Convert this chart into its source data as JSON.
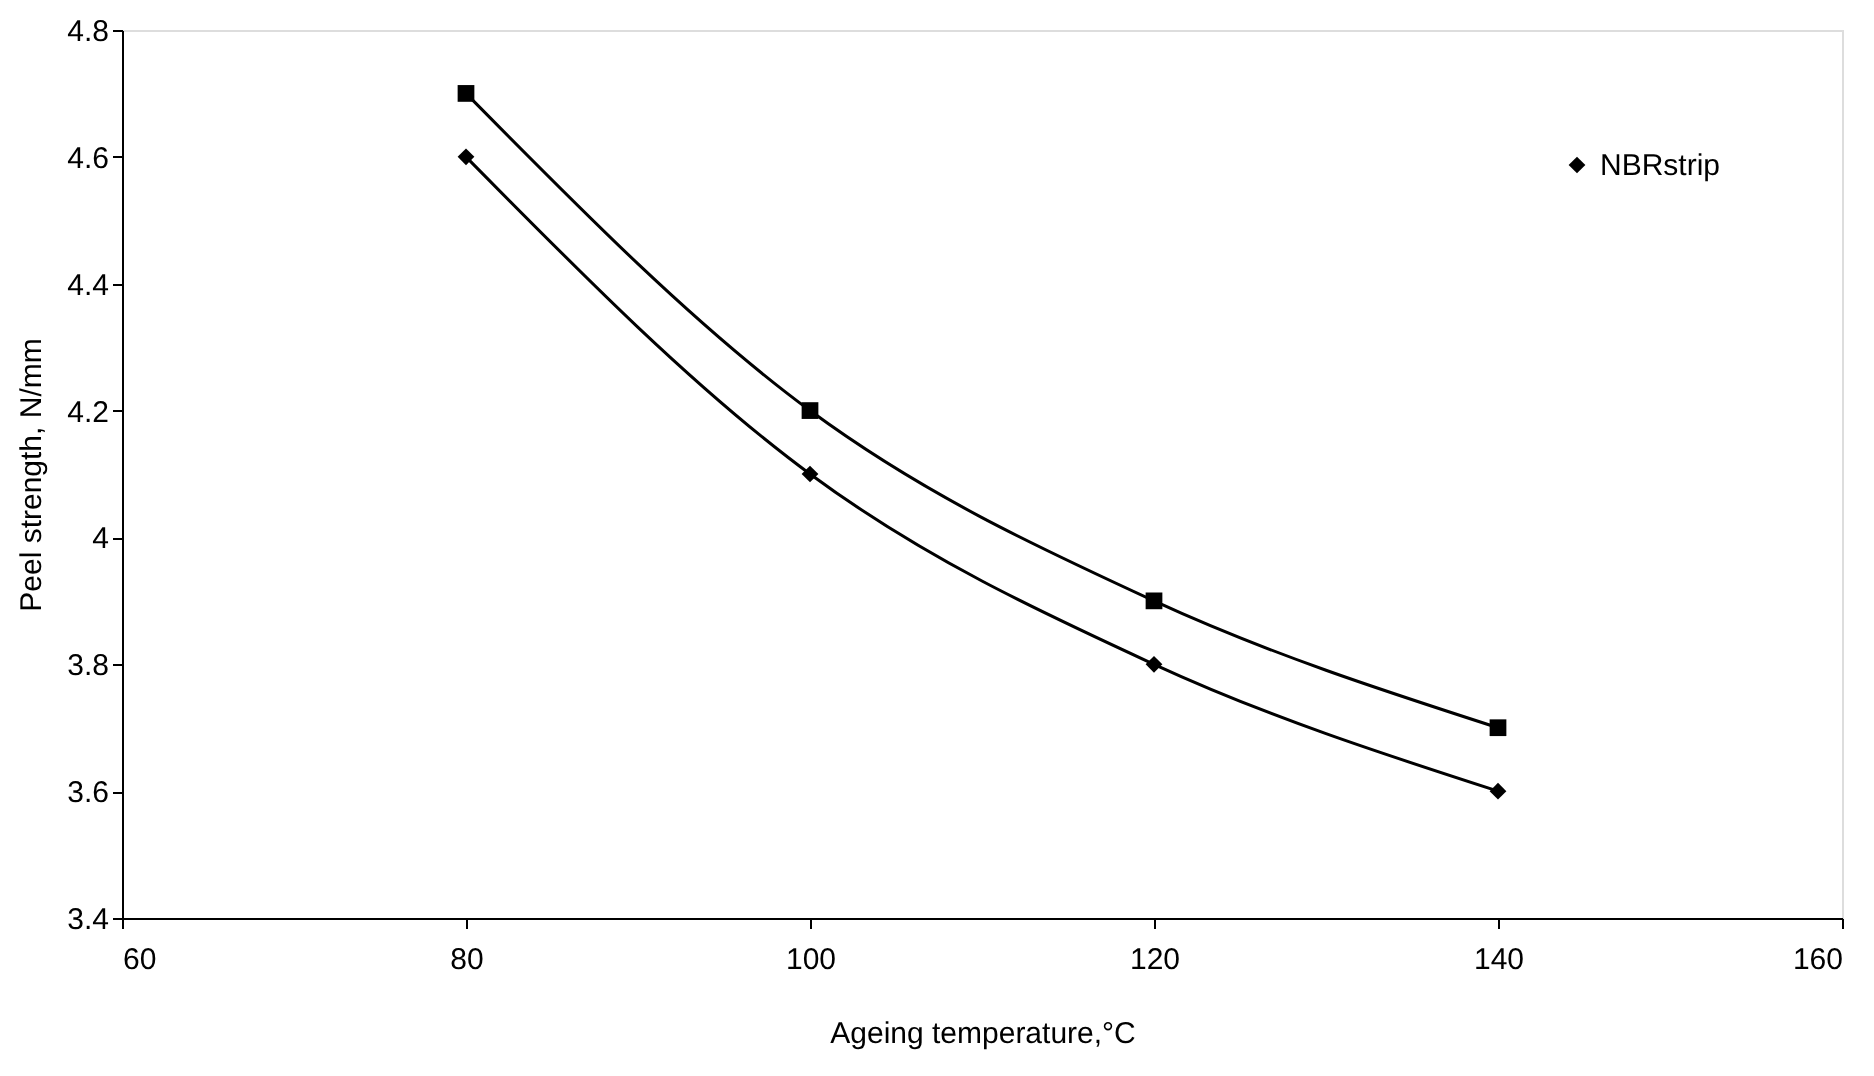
{
  "chart_data": {
    "type": "line",
    "xlabel": "Ageing temperature,°C",
    "ylabel": "Peel strength, N/mm",
    "x": [
      80,
      100,
      120,
      140
    ],
    "series": [
      {
        "name": "NBRstrip",
        "color": "#000000",
        "values": [
          4.6,
          4.1,
          3.8,
          3.6
        ],
        "marker": "diamond"
      },
      {
        "color": "#000000",
        "values": [
          4.7,
          4.2,
          3.9,
          3.7
        ],
        "marker": "square"
      }
    ],
    "xlim": [
      60,
      160
    ],
    "xticks": [
      60,
      80,
      100,
      120,
      140,
      160
    ],
    "ylim": [
      3.4,
      4.8
    ],
    "yticks": [
      3.4,
      3.6,
      3.8,
      4.0,
      4.2,
      4.4,
      4.6,
      4.8
    ],
    "grid": false,
    "legend": "top right",
    "line_style": "solid"
  }
}
